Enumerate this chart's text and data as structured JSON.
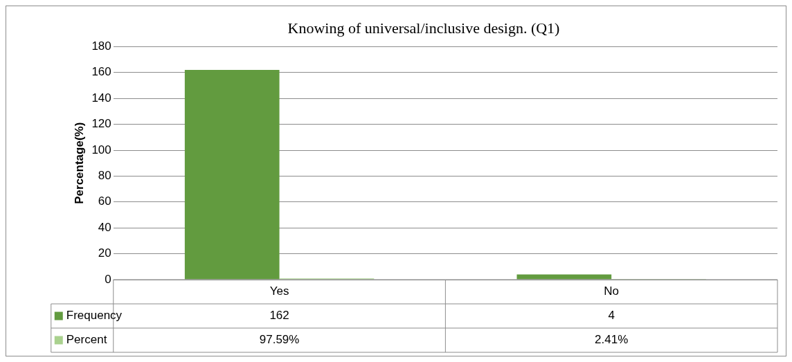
{
  "chart_data": {
    "type": "bar",
    "title": "Knowing of universal/inclusive design. (Q1)",
    "ylabel": "Percentage(%)",
    "categories": [
      "Yes",
      "No"
    ],
    "series": [
      {
        "name": "Frequency",
        "color": "#629b3f",
        "values": [
          162,
          4
        ],
        "value_labels": [
          "162",
          "4"
        ]
      },
      {
        "name": "Percent",
        "color": "#a9d18e",
        "values": [
          0.9759,
          0.0241
        ],
        "value_labels": [
          "97.59%",
          "2.41%"
        ]
      }
    ],
    "ylim": [
      0,
      180
    ],
    "yticks": [
      0,
      20,
      40,
      60,
      80,
      100,
      120,
      140,
      160,
      180
    ],
    "grid": "y",
    "legend": "bottom"
  }
}
